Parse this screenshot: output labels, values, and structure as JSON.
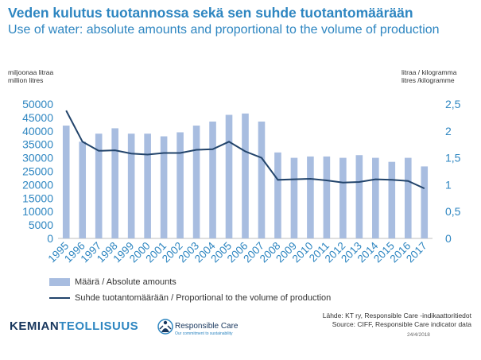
{
  "header": {
    "title_fi": "Veden kulutus tuotannossa sekä sen suhde  tuotantomäärään",
    "title_en": "Use of water: absolute amounts and proportional to the volume of production"
  },
  "axis_units": {
    "left_fi": "miljoonaa litraa",
    "left_en": "million litres",
    "right_fi": "litraa / kilogramma",
    "right_en": "litres /kilogramme"
  },
  "legend": {
    "bar_label": "Määrä / Absolute amounts",
    "line_label": "Suhde tuotantomäärään / Proportional to the volume of production"
  },
  "footer": {
    "source_fi": "Lähde: KT ry, Responsible Care -indikaattoritiedot",
    "source_en": "Source: CIFF, Responsible Care indicator data",
    "date": "24/4/2018",
    "logo_part1": "KEMIAN",
    "logo_part2": "TEOLLISUUS",
    "rc_name": "Responsible Care",
    "rc_tagline": "Our commitment to sustainability"
  },
  "colors": {
    "title": "#2e86c1",
    "bar": "#a8bde0",
    "line": "#22446b",
    "axis_text": "#2e86c1"
  },
  "chart_data": {
    "type": "bar+line",
    "categories": [
      "1995",
      "1996",
      "1997",
      "1998",
      "1999",
      "2000",
      "2001",
      "2002",
      "2003",
      "2004",
      "2005",
      "2006",
      "2007",
      "2008",
      "2009",
      "2010",
      "2011",
      "2012",
      "2013",
      "2014",
      "2015",
      "2016",
      "2017"
    ],
    "series": [
      {
        "name": "Määrä / Absolute amounts",
        "type": "bar",
        "axis": "left",
        "values": [
          42000,
          36000,
          39000,
          41000,
          39000,
          39000,
          38000,
          39500,
          42000,
          43500,
          46000,
          46500,
          43500,
          32000,
          30000,
          30500,
          30500,
          30000,
          31000,
          30000,
          28500,
          30000,
          26800
        ]
      },
      {
        "name": "Suhde tuotantomäärään / Proportional to the volume of production",
        "type": "line",
        "axis": "right",
        "values": [
          2.38,
          1.8,
          1.63,
          1.64,
          1.58,
          1.56,
          1.59,
          1.59,
          1.65,
          1.66,
          1.8,
          1.62,
          1.5,
          1.09,
          1.1,
          1.11,
          1.08,
          1.04,
          1.05,
          1.1,
          1.09,
          1.07,
          0.93
        ]
      }
    ],
    "yaxis_left": {
      "ticks": [
        0,
        5000,
        10000,
        15000,
        20000,
        25000,
        30000,
        35000,
        40000,
        45000,
        50000
      ],
      "range": [
        0,
        50000
      ]
    },
    "yaxis_right": {
      "ticks": [
        0,
        0.5,
        1,
        1.5,
        2,
        2.5
      ],
      "tick_labels": [
        "0",
        "0,5",
        "1",
        "1,5",
        "2",
        "2,5"
      ],
      "range": [
        0,
        2.5
      ]
    },
    "grid": false,
    "legend_position": "bottom-left"
  }
}
